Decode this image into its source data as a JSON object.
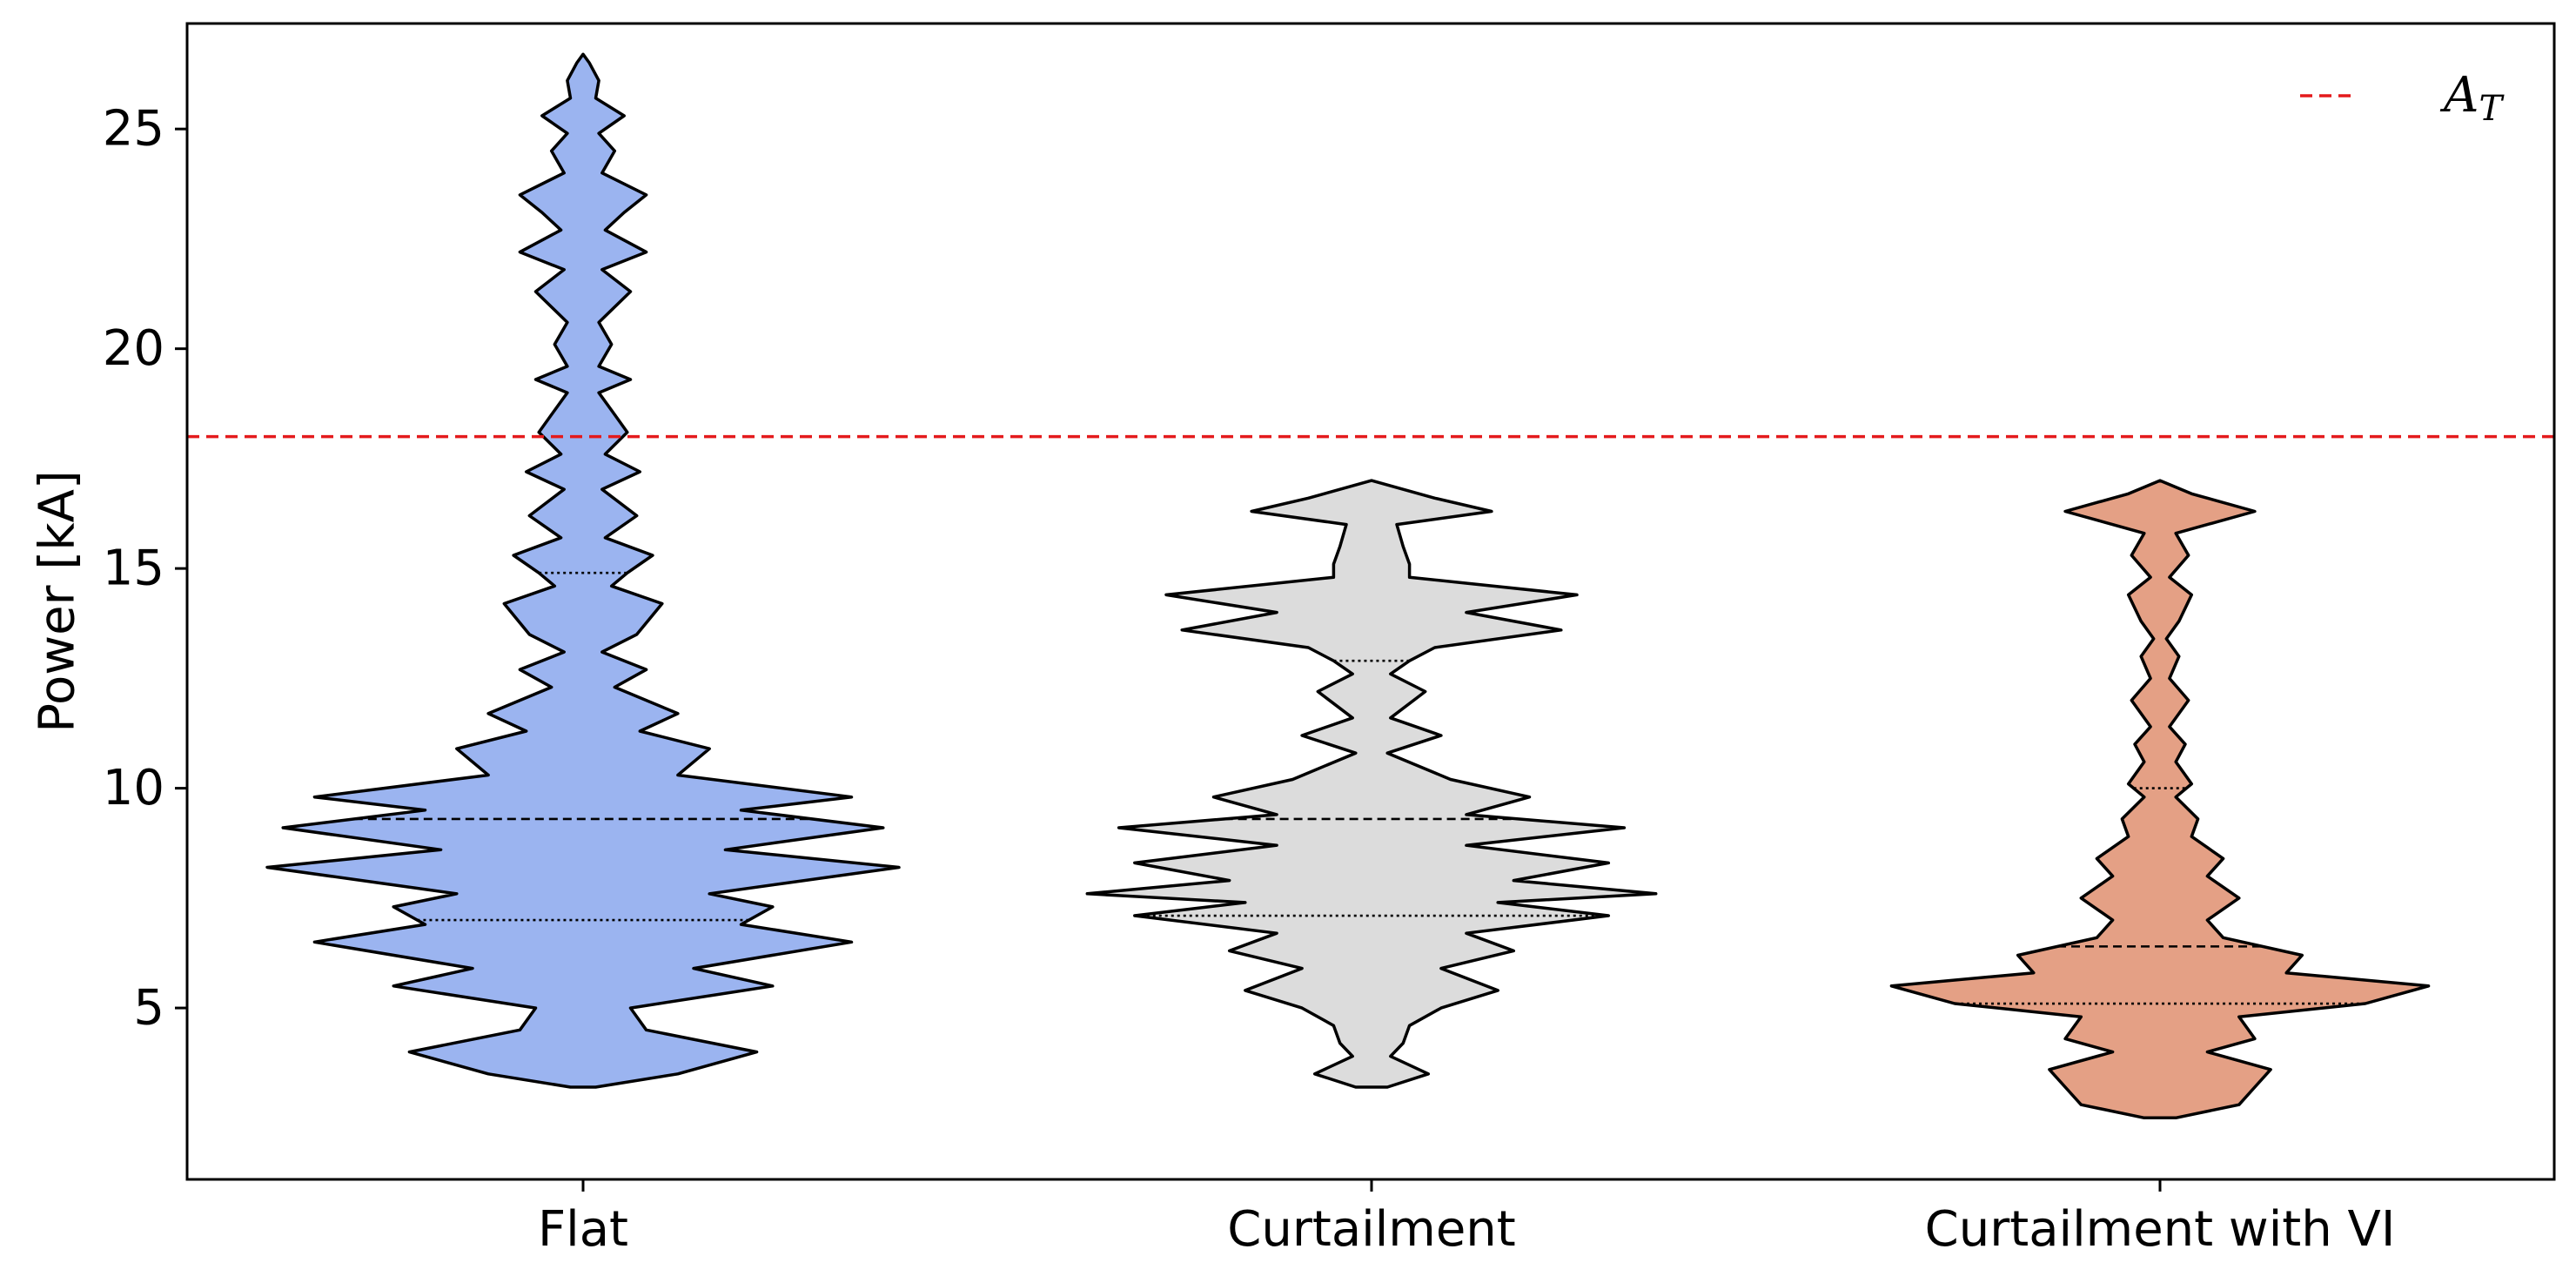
{
  "chart_data": {
    "type": "violin",
    "ylabel": "Power [kA]",
    "ylim": [
      1.1,
      27.4
    ],
    "yticks": [
      5,
      10,
      15,
      20,
      25
    ],
    "categories": [
      "Flat",
      "Curtailment",
      "Curtailment with VI"
    ],
    "threshold": {
      "label": "A",
      "label_sub": "T",
      "value": 18.0,
      "color": "#e41a1c",
      "style": "dashed"
    },
    "legend": {
      "placement": "top-right"
    },
    "grid": false,
    "series": [
      {
        "category": "Flat",
        "color": "#9bb4f0",
        "min": 3.2,
        "max": 26.7,
        "quartiles": {
          "q1": 7.0,
          "median": 9.3,
          "q3": 14.9
        },
        "profile": [
          [
            3.2,
            0.04
          ],
          [
            3.5,
            0.3
          ],
          [
            4.0,
            0.55
          ],
          [
            4.5,
            0.2
          ],
          [
            5.0,
            0.15
          ],
          [
            5.5,
            0.6
          ],
          [
            5.9,
            0.35
          ],
          [
            6.5,
            0.85
          ],
          [
            6.9,
            0.5
          ],
          [
            7.3,
            0.6
          ],
          [
            7.6,
            0.4
          ],
          [
            8.2,
            1.0
          ],
          [
            8.6,
            0.45
          ],
          [
            9.1,
            0.95
          ],
          [
            9.5,
            0.5
          ],
          [
            9.8,
            0.85
          ],
          [
            10.3,
            0.3
          ],
          [
            10.9,
            0.4
          ],
          [
            11.3,
            0.18
          ],
          [
            11.7,
            0.3
          ],
          [
            12.3,
            0.1
          ],
          [
            12.7,
            0.2
          ],
          [
            13.1,
            0.06
          ],
          [
            13.5,
            0.17
          ],
          [
            14.2,
            0.25
          ],
          [
            14.6,
            0.09
          ],
          [
            14.9,
            0.14
          ],
          [
            15.3,
            0.22
          ],
          [
            15.7,
            0.07
          ],
          [
            16.2,
            0.17
          ],
          [
            16.8,
            0.06
          ],
          [
            17.2,
            0.18
          ],
          [
            17.6,
            0.07
          ],
          [
            18.1,
            0.14
          ],
          [
            18.5,
            0.1
          ],
          [
            19.0,
            0.05
          ],
          [
            19.3,
            0.15
          ],
          [
            19.6,
            0.05
          ],
          [
            20.1,
            0.09
          ],
          [
            20.6,
            0.05
          ],
          [
            21.3,
            0.15
          ],
          [
            21.8,
            0.06
          ],
          [
            22.2,
            0.2
          ],
          [
            22.7,
            0.07
          ],
          [
            23.1,
            0.13
          ],
          [
            23.5,
            0.2
          ],
          [
            24.0,
            0.06
          ],
          [
            24.5,
            0.1
          ],
          [
            24.9,
            0.05
          ],
          [
            25.3,
            0.13
          ],
          [
            25.7,
            0.04
          ],
          [
            26.1,
            0.05
          ],
          [
            26.5,
            0.02
          ],
          [
            26.7,
            0.0
          ]
        ]
      },
      {
        "category": "Curtailment",
        "color": "#dcdcdc",
        "min": 3.2,
        "max": 17.0,
        "quartiles": {
          "q1": 7.1,
          "median": 9.3,
          "q3": 12.9
        },
        "profile": [
          [
            3.2,
            0.05
          ],
          [
            3.5,
            0.18
          ],
          [
            3.9,
            0.06
          ],
          [
            4.2,
            0.1
          ],
          [
            4.6,
            0.12
          ],
          [
            5.0,
            0.22
          ],
          [
            5.4,
            0.4
          ],
          [
            5.9,
            0.22
          ],
          [
            6.3,
            0.45
          ],
          [
            6.7,
            0.3
          ],
          [
            7.1,
            0.75
          ],
          [
            7.4,
            0.4
          ],
          [
            7.6,
            0.9
          ],
          [
            7.9,
            0.45
          ],
          [
            8.3,
            0.75
          ],
          [
            8.7,
            0.3
          ],
          [
            9.1,
            0.8
          ],
          [
            9.4,
            0.3
          ],
          [
            9.8,
            0.5
          ],
          [
            10.2,
            0.25
          ],
          [
            10.8,
            0.05
          ],
          [
            11.2,
            0.22
          ],
          [
            11.6,
            0.06
          ],
          [
            12.2,
            0.17
          ],
          [
            12.6,
            0.06
          ],
          [
            12.9,
            0.12
          ],
          [
            13.2,
            0.2
          ],
          [
            13.6,
            0.6
          ],
          [
            14.0,
            0.3
          ],
          [
            14.4,
            0.65
          ],
          [
            14.8,
            0.12
          ],
          [
            15.1,
            0.12
          ],
          [
            15.5,
            0.1
          ],
          [
            16.0,
            0.08
          ],
          [
            16.3,
            0.38
          ],
          [
            16.6,
            0.2
          ],
          [
            17.0,
            0.0
          ]
        ]
      },
      {
        "category": "Curtailment with VI",
        "color": "#e4a085",
        "min": 2.5,
        "max": 17.0,
        "quartiles": {
          "q1": 5.1,
          "median": 6.4,
          "q3": 10.0
        },
        "profile": [
          [
            2.5,
            0.05
          ],
          [
            2.8,
            0.25
          ],
          [
            3.2,
            0.3
          ],
          [
            3.6,
            0.35
          ],
          [
            4.0,
            0.15
          ],
          [
            4.3,
            0.3
          ],
          [
            4.8,
            0.25
          ],
          [
            5.1,
            0.65
          ],
          [
            5.5,
            0.85
          ],
          [
            5.8,
            0.4
          ],
          [
            6.2,
            0.45
          ],
          [
            6.6,
            0.2
          ],
          [
            7.0,
            0.15
          ],
          [
            7.5,
            0.25
          ],
          [
            8.0,
            0.15
          ],
          [
            8.4,
            0.2
          ],
          [
            8.9,
            0.1
          ],
          [
            9.3,
            0.12
          ],
          [
            9.8,
            0.05
          ],
          [
            10.1,
            0.1
          ],
          [
            10.6,
            0.05
          ],
          [
            11.0,
            0.08
          ],
          [
            11.4,
            0.03
          ],
          [
            12.0,
            0.09
          ],
          [
            12.5,
            0.03
          ],
          [
            13.0,
            0.06
          ],
          [
            13.4,
            0.02
          ],
          [
            13.8,
            0.06
          ],
          [
            14.4,
            0.1
          ],
          [
            14.8,
            0.03
          ],
          [
            15.3,
            0.09
          ],
          [
            15.8,
            0.05
          ],
          [
            16.3,
            0.3
          ],
          [
            16.7,
            0.1
          ],
          [
            17.0,
            0.0
          ]
        ]
      }
    ]
  }
}
